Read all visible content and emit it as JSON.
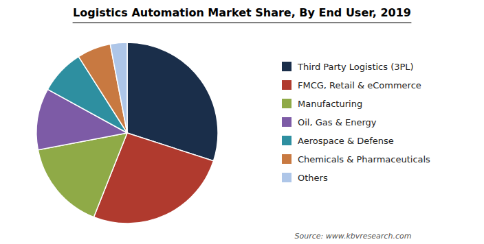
{
  "chart_data": {
    "type": "pie",
    "title": "Logistics Automation Market Share, By End User, 2019",
    "source": "Source: www.kbvresearch.com",
    "categories": [
      "Third Party Logistics (3PL)",
      "FMCG, Retail & eCommerce",
      "Manufacturing",
      "Oil, Gas & Energy",
      "Aerospace & Defense",
      "Chemicals & Pharmaceuticals",
      "Others"
    ],
    "values": [
      30,
      26,
      16,
      11,
      8,
      6,
      3
    ],
    "colors": [
      "#1a2e4a",
      "#b03a2e",
      "#8faa47",
      "#7d5ba6",
      "#2e8fa0",
      "#c87941",
      "#aec6e8"
    ],
    "legend": "right"
  }
}
